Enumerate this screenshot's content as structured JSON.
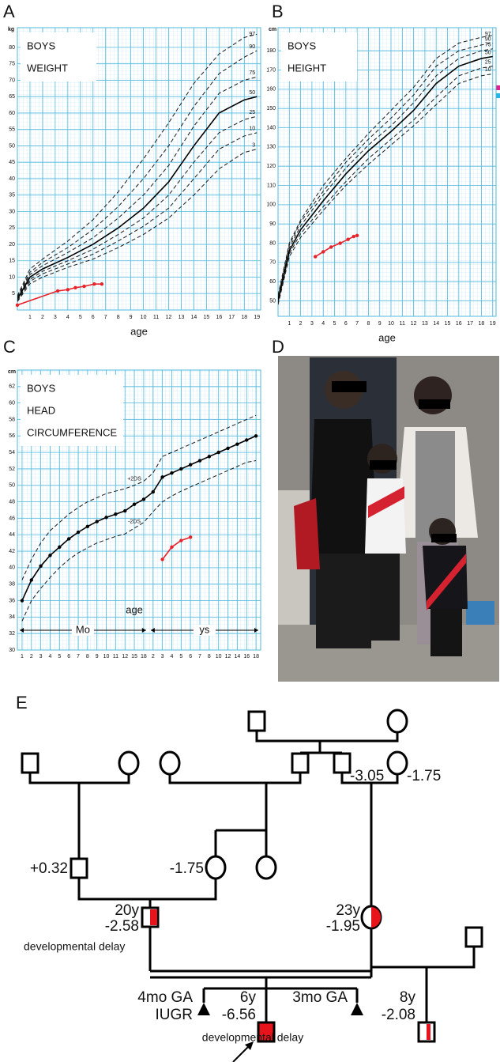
{
  "panel_labels": [
    "A",
    "B",
    "C",
    "D",
    "E"
  ],
  "chart_data": [
    {
      "type": "line",
      "ylabel": "kg",
      "xlabel": "age",
      "annotations": [
        "BOYS",
        "WEIGHT"
      ],
      "x": [
        0,
        1,
        2,
        4,
        6,
        8,
        10,
        12,
        14,
        16,
        18,
        19
      ],
      "series": [
        {
          "name": "97",
          "color": "#1a1a1a",
          "dashed": true,
          "values": [
            4.3,
            12.5,
            15.5,
            21,
            27.5,
            36,
            46,
            57,
            69,
            78,
            83,
            84
          ]
        },
        {
          "name": "90",
          "color": "#1a1a1a",
          "dashed": true,
          "values": [
            4,
            11.5,
            14.5,
            19,
            24.5,
            31.5,
            40,
            50,
            62,
            72,
            77,
            79
          ]
        },
        {
          "name": "75",
          "color": "#1a1a1a",
          "dashed": true,
          "values": [
            3.7,
            10.8,
            13.5,
            17.5,
            22,
            28,
            35,
            44,
            56,
            66,
            70,
            71
          ]
        },
        {
          "name": "50",
          "color": "#000000",
          "dashed": false,
          "values": [
            3.3,
            10,
            12.5,
            16,
            20,
            25,
            31,
            39,
            50,
            60,
            64,
            65
          ]
        },
        {
          "name": "25",
          "color": "#1a1a1a",
          "dashed": true,
          "values": [
            3,
            9.3,
            11.8,
            15,
            18.5,
            23,
            28,
            35,
            45,
            54,
            58,
            59
          ]
        },
        {
          "name": "10",
          "color": "#1a1a1a",
          "dashed": true,
          "values": [
            2.8,
            8.7,
            11,
            14,
            17,
            21,
            25.5,
            31,
            40,
            49,
            53,
            54
          ]
        },
        {
          "name": "3",
          "color": "#1a1a1a",
          "dashed": true,
          "values": [
            2.5,
            8,
            10,
            13,
            15.5,
            19,
            23,
            28,
            35,
            43,
            48,
            49
          ]
        },
        {
          "color": "#e8222a",
          "dashed": false,
          "x": [
            0,
            3.2,
            4,
            4.6,
            5.3,
            6.1,
            6.7
          ],
          "values": [
            1.5,
            5.8,
            6.2,
            6.8,
            7.2,
            7.9,
            7.9
          ]
        }
      ],
      "xlim": [
        0,
        19.3
      ],
      "xticks": [
        1,
        2,
        3,
        4,
        5,
        6,
        7,
        8,
        9,
        10,
        11,
        12,
        13,
        14,
        15,
        16,
        17,
        18,
        19
      ],
      "ylim": [
        0,
        86
      ],
      "yticks": [
        5,
        10,
        15,
        20,
        25,
        30,
        35,
        40,
        45,
        50,
        55,
        60,
        65,
        70,
        75,
        80
      ],
      "grid": true
    },
    {
      "type": "line",
      "ylabel": "cm",
      "xlabel": "age",
      "annotations": [
        "BOYS",
        "HEIGHT"
      ],
      "x": [
        0,
        1,
        2,
        4,
        6,
        8,
        10,
        12,
        14,
        16,
        18,
        19
      ],
      "series": [
        {
          "name": "97",
          "color": "#1a1a1a",
          "dashed": true,
          "values": [
            53,
            80,
            92,
            110,
            124,
            137,
            149,
            161,
            176,
            184,
            187,
            188
          ]
        },
        {
          "name": "90",
          "color": "#1a1a1a",
          "dashed": true,
          "values": [
            52,
            79,
            91,
            107,
            122,
            134,
            145,
            157,
            172,
            180,
            183,
            184
          ]
        },
        {
          "name": "75",
          "color": "#1a1a1a",
          "dashed": true,
          "values": [
            51,
            77.5,
            89,
            105,
            119,
            131,
            141,
            153,
            167,
            176,
            180,
            181
          ]
        },
        {
          "name": "50",
          "color": "#000000",
          "dashed": false,
          "values": [
            50,
            76,
            87,
            102,
            116,
            128,
            138,
            149,
            163,
            172,
            176,
            177
          ]
        },
        {
          "name": "25",
          "color": "#1a1a1a",
          "dashed": true,
          "values": [
            49,
            74.5,
            85,
            99,
            112,
            124,
            134,
            144,
            156,
            167,
            171,
            172
          ]
        },
        {
          "name": "10",
          "color": "#1a1a1a",
          "dashed": true,
          "values": [
            48,
            73,
            83,
            97,
            110,
            121,
            131,
            141,
            152,
            163,
            167,
            168
          ]
        },
        {
          "color": "#e8222a",
          "dashed": false,
          "x": [
            3.3,
            4,
            4.7,
            5.5,
            6.2,
            6.7,
            7
          ],
          "values": [
            73,
            75.5,
            78,
            80,
            82,
            83.5,
            84
          ]
        }
      ],
      "xlim": [
        0,
        19.3
      ],
      "xticks": [
        1,
        2,
        3,
        4,
        5,
        6,
        7,
        8,
        9,
        10,
        11,
        12,
        13,
        14,
        15,
        16,
        17,
        18,
        19
      ],
      "ylim": [
        42,
        192
      ],
      "yticks": [
        50,
        60,
        70,
        80,
        90,
        100,
        110,
        120,
        130,
        140,
        150,
        160,
        170,
        180
      ],
      "grid": true
    },
    {
      "type": "line",
      "ylabel": "cm",
      "xlabel": "age",
      "annotations": [
        "BOYS",
        "HEAD",
        "CIRCUMFERENCE"
      ],
      "period_labels": [
        "Mo",
        "ys"
      ],
      "categories": [
        "1",
        "2",
        "3",
        "4",
        "5",
        "6",
        "7",
        "8",
        "9",
        "10",
        "11",
        "12",
        "15",
        "18",
        "2",
        "3",
        "4",
        "5",
        "6",
        "7",
        "8",
        "10",
        "12",
        "14",
        "16",
        "18"
      ],
      "series": [
        {
          "name": "+2DS",
          "color": "#1a1a1a",
          "dashed": true,
          "values": [
            38.5,
            41,
            43,
            44.5,
            45.5,
            46.5,
            47.3,
            48,
            48.5,
            49,
            49.3,
            49.6,
            50,
            50.5,
            51.5,
            53.5,
            54,
            54.5,
            55,
            55.5,
            56,
            56.5,
            57,
            57.5,
            58,
            58.5
          ]
        },
        {
          "color": "#000000",
          "dashed": false,
          "values": [
            36,
            38.5,
            40.2,
            41.5,
            42.5,
            43.5,
            44.3,
            45,
            45.6,
            46.1,
            46.5,
            46.9,
            47.7,
            48.3,
            49.2,
            51,
            51.5,
            52,
            52.5,
            53,
            53.5,
            54,
            54.5,
            55,
            55.5,
            56
          ]
        },
        {
          "name": "-2DS",
          "color": "#1a1a1a",
          "dashed": true,
          "values": [
            33.5,
            36,
            37.5,
            38.8,
            40,
            41,
            41.8,
            42.4,
            43,
            43.4,
            43.8,
            44.1,
            44.8,
            45.5,
            46.8,
            48,
            48.7,
            49.3,
            49.8,
            50.3,
            50.8,
            51.3,
            51.8,
            52.3,
            52.8,
            53
          ]
        },
        {
          "color": "#e8222a",
          "dashed": false,
          "values": [
            null,
            null,
            null,
            null,
            null,
            null,
            null,
            null,
            null,
            null,
            null,
            null,
            null,
            null,
            null,
            41,
            42.5,
            43.3,
            43.7,
            null,
            null,
            null,
            null,
            null,
            null,
            null
          ]
        }
      ],
      "ylim": [
        30,
        64
      ],
      "yticks": [
        30,
        32,
        34,
        36,
        38,
        40,
        42,
        44,
        46,
        48,
        50,
        52,
        54,
        56,
        58,
        60,
        62
      ],
      "grid": true
    }
  ],
  "pedigree": {
    "labels": [
      "-3.05",
      "-1.75",
      "+0.32",
      "-1.75",
      "20y",
      "-2.58",
      "developmental delay",
      "23y",
      "-1.95",
      "4mo GA",
      "IUGR",
      "6y",
      "-6.56",
      "developmental delay",
      "3mo GA",
      "8y",
      "-2.08"
    ]
  }
}
